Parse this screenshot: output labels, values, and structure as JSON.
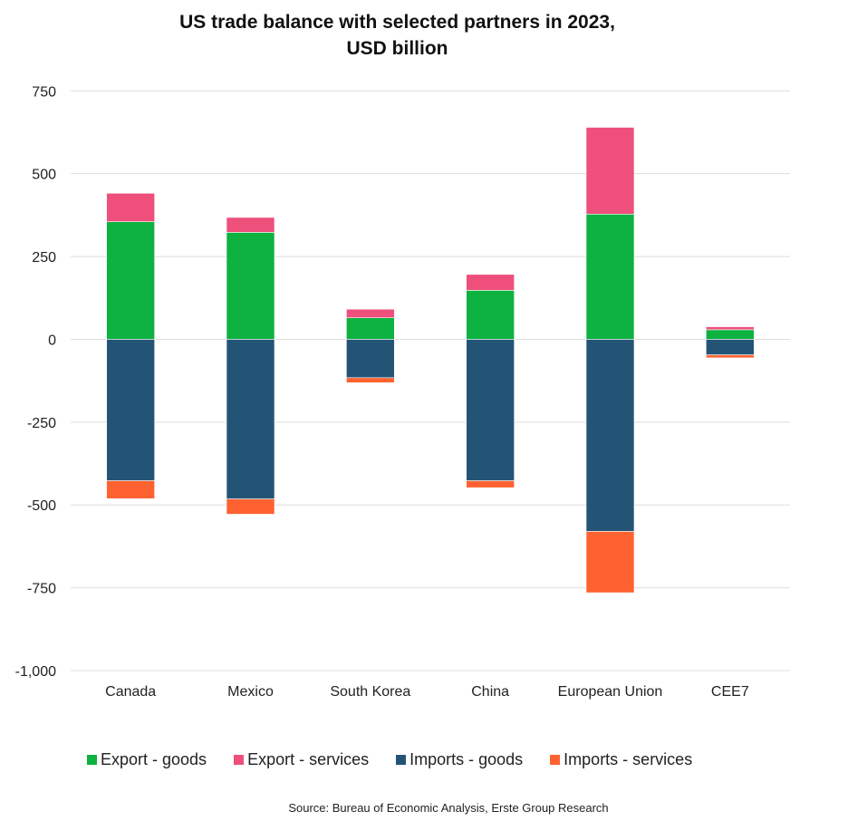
{
  "chart_data": {
    "type": "bar",
    "stacked": true,
    "title": "US trade balance with selected partners in 2023,",
    "subtitle": "USD billion",
    "xlabel": "",
    "ylabel": "",
    "ylim": [
      -1000,
      750
    ],
    "yticks": [
      750,
      500,
      250,
      0,
      -250,
      -500,
      -750,
      -1000
    ],
    "ytick_labels": [
      "750",
      "500",
      "250",
      "0",
      "-250",
      "-500",
      "-750",
      "-1,000"
    ],
    "grid": true,
    "legend_position": "bottom",
    "categories": [
      "Canada",
      "Mexico",
      "South Korea",
      "China",
      "European Union",
      "CEE7"
    ],
    "series": [
      {
        "name": "Export - goods",
        "color": "#0db240",
        "values": [
          355,
          323,
          65,
          148,
          378,
          29
        ]
      },
      {
        "name": "Export - services",
        "color": "#ee4f7b",
        "values": [
          86,
          45,
          26,
          48,
          262,
          9
        ]
      },
      {
        "name": "Imports - goods",
        "color": "#245475",
        "values": [
          -427,
          -482,
          -116,
          -427,
          -580,
          -47
        ]
      },
      {
        "name": "Imports - services",
        "color": "#fe6230",
        "values": [
          -54,
          -46,
          -15,
          -21,
          -185,
          -9
        ]
      }
    ]
  },
  "source": "Source: Bureau of Economic Analysis, Erste Group Research"
}
